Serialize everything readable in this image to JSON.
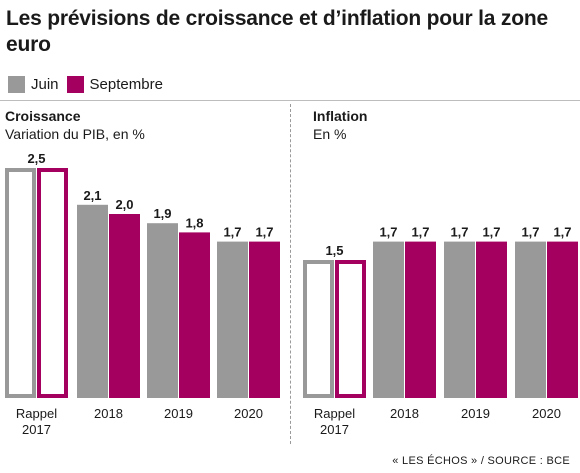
{
  "title": "Les prévisions de croissance et d’inflation pour la zone euro",
  "legend": {
    "juin": "Juin",
    "septembre": "Septembre"
  },
  "colors": {
    "juin": "#999999",
    "septembre": "#a3005f"
  },
  "source": "« LES ÉCHOS » / SOURCE : BCE",
  "chart_data": [
    {
      "type": "bar",
      "title": "Croissance",
      "subtitle": "Variation du PIB, en %",
      "categories": [
        "Rappel 2017",
        "2018",
        "2019",
        "2020"
      ],
      "series": [
        {
          "name": "Juin",
          "values": [
            2.5,
            2.1,
            1.9,
            1.7
          ]
        },
        {
          "name": "Septembre",
          "values": [
            2.5,
            2.0,
            1.8,
            1.7
          ]
        }
      ],
      "data_labels": [
        [
          "2,5"
        ],
        [
          "2,1",
          "2,0"
        ],
        [
          "1,9",
          "1,8"
        ],
        [
          "1,7",
          "1,7"
        ]
      ],
      "outlined_categories": [
        "Rappel 2017"
      ],
      "ylim": [
        0,
        2.5
      ]
    },
    {
      "type": "bar",
      "title": "Inflation",
      "subtitle": "En %",
      "categories": [
        "Rappel 2017",
        "2018",
        "2019",
        "2020"
      ],
      "series": [
        {
          "name": "Juin",
          "values": [
            1.5,
            1.7,
            1.7,
            1.7
          ]
        },
        {
          "name": "Septembre",
          "values": [
            1.5,
            1.7,
            1.7,
            1.7
          ]
        }
      ],
      "data_labels": [
        [
          "1,5"
        ],
        [
          "1,7",
          "1,7"
        ],
        [
          "1,7",
          "1,7"
        ],
        [
          "1,7",
          "1,7"
        ]
      ],
      "outlined_categories": [
        "Rappel 2017"
      ],
      "ylim": [
        0,
        2.5
      ]
    }
  ]
}
